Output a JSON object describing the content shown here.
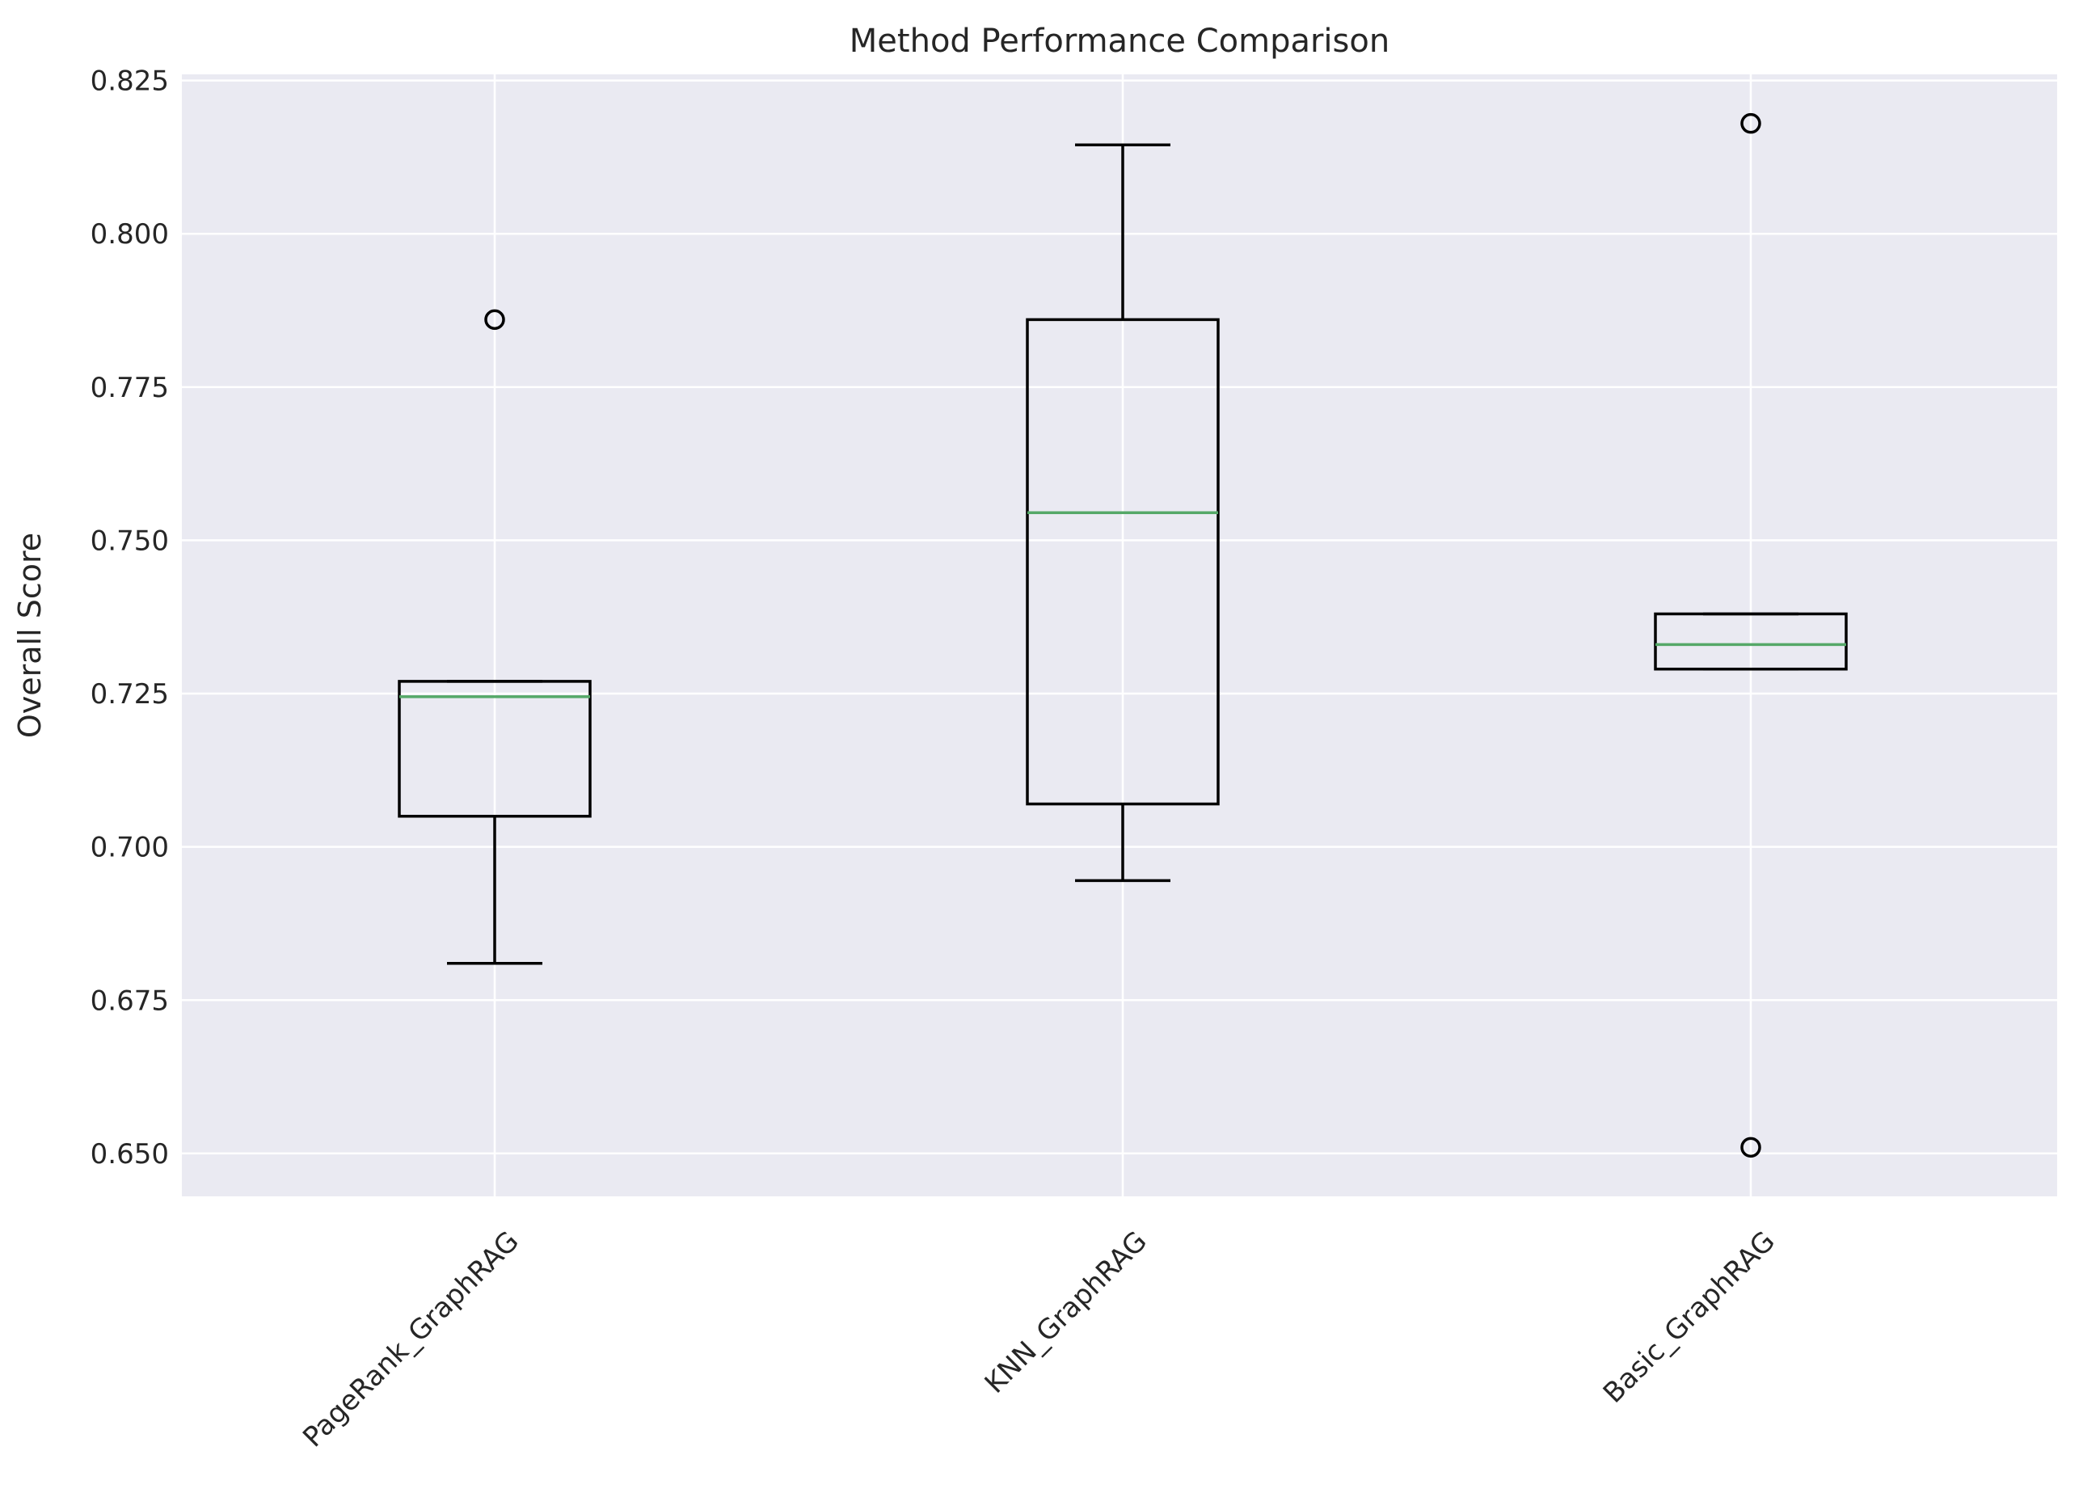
{
  "chart_data": {
    "type": "box",
    "title": "Method Performance Comparison",
    "xlabel": "",
    "ylabel": "Overall Score",
    "ylim": [
      0.643,
      0.826
    ],
    "yticks": [
      0.65,
      0.675,
      0.7,
      0.725,
      0.75,
      0.775,
      0.8,
      0.825
    ],
    "ytick_labels": [
      "0.650",
      "0.675",
      "0.700",
      "0.725",
      "0.750",
      "0.775",
      "0.800",
      "0.825"
    ],
    "categories": [
      "PageRank_GraphRAG",
      "KNN_GraphRAG",
      "Basic_GraphRAG"
    ],
    "x_tick_rotation": 45,
    "grid": true,
    "colors": {
      "plot_background": "#eaeaf2",
      "grid": "#ffffff",
      "box": "#000000",
      "median": "#55a868",
      "text": "#262626"
    },
    "boxes": [
      {
        "name": "PageRank_GraphRAG",
        "whisker_low": 0.681,
        "q1": 0.705,
        "median": 0.7245,
        "q3": 0.727,
        "whisker_high": 0.727,
        "outliers": [
          0.786
        ]
      },
      {
        "name": "KNN_GraphRAG",
        "whisker_low": 0.6945,
        "q1": 0.707,
        "median": 0.7545,
        "q3": 0.786,
        "whisker_high": 0.8145,
        "outliers": []
      },
      {
        "name": "Basic_GraphRAG",
        "whisker_low": 0.729,
        "q1": 0.729,
        "median": 0.733,
        "q3": 0.738,
        "whisker_high": 0.738,
        "outliers": [
          0.818,
          0.651
        ]
      }
    ]
  }
}
